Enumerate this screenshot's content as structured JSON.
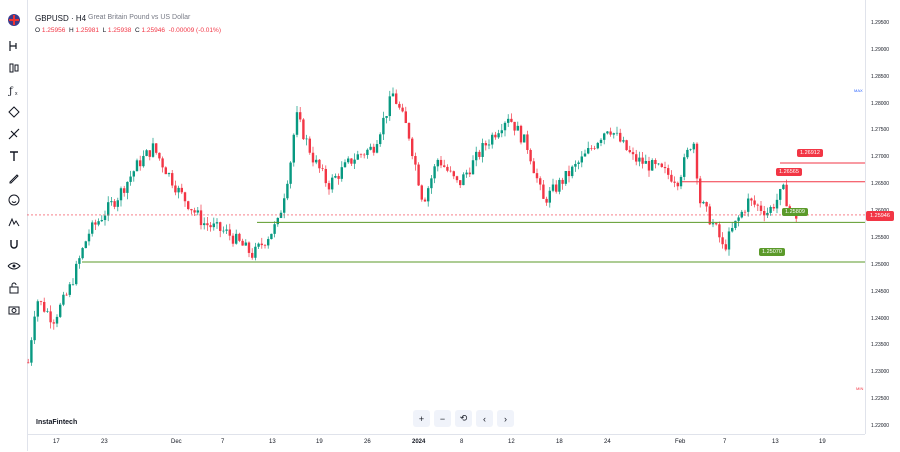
{
  "symbol": {
    "ticker": "GBPUSD",
    "interval": "H4",
    "description": "Great Britain Pound vs US Dollar"
  },
  "ohlc": {
    "o_label": "O",
    "o": "1.25956",
    "h_label": "H",
    "h": "1.25981",
    "l_label": "L",
    "l": "1.25938",
    "c_label": "C",
    "c": "1.25946",
    "change": "-0.00009 (-0.01%)"
  },
  "price_axis": [
    "1.29500",
    "1.29000",
    "1.28500",
    "1.28000",
    "1.27500",
    "1.27000",
    "1.26500",
    "1.26000",
    "1.25500",
    "1.25000",
    "1.24500",
    "1.24000",
    "1.23500",
    "1.23000",
    "1.22500",
    "1.22000"
  ],
  "current_price": "1.25946",
  "levels": [
    {
      "label": "1.26912",
      "color": "#f23645",
      "price": 1.26912
    },
    {
      "label": "1.26565",
      "color": "#f23645",
      "price": 1.26565
    },
    {
      "label": "1.25809",
      "color": "#5b9a2a",
      "price": 1.25809
    },
    {
      "label": "1.25070",
      "color": "#5b9a2a",
      "price": 1.2507
    }
  ],
  "time_axis": [
    "17",
    "23",
    "Dec",
    "7",
    "13",
    "19",
    "26",
    "2024",
    "8",
    "12",
    "18",
    "24",
    "Feb",
    "7",
    "13",
    "19"
  ],
  "top_marker": "MAX",
  "bottom_marker": "MIN",
  "brand": "InstaFintech",
  "nav": {
    "zoom_in": "+",
    "zoom_out": "−",
    "reset": "⟲",
    "prev": "‹",
    "next": "›"
  },
  "tools": [
    "crosshair-icon",
    "trend-line-icon",
    "fib-icon",
    "brush-icon",
    "measure-icon",
    "pattern-icon",
    "text-icon",
    "ruler-icon",
    "emoji-icon",
    "patterns-icon",
    "magnet-icon",
    "eye-icon",
    "lock-icon",
    "camera-icon"
  ],
  "colors": {
    "up": "#089981",
    "down": "#f23645",
    "support": "#5b9a2a",
    "resistance": "#f23645"
  }
}
